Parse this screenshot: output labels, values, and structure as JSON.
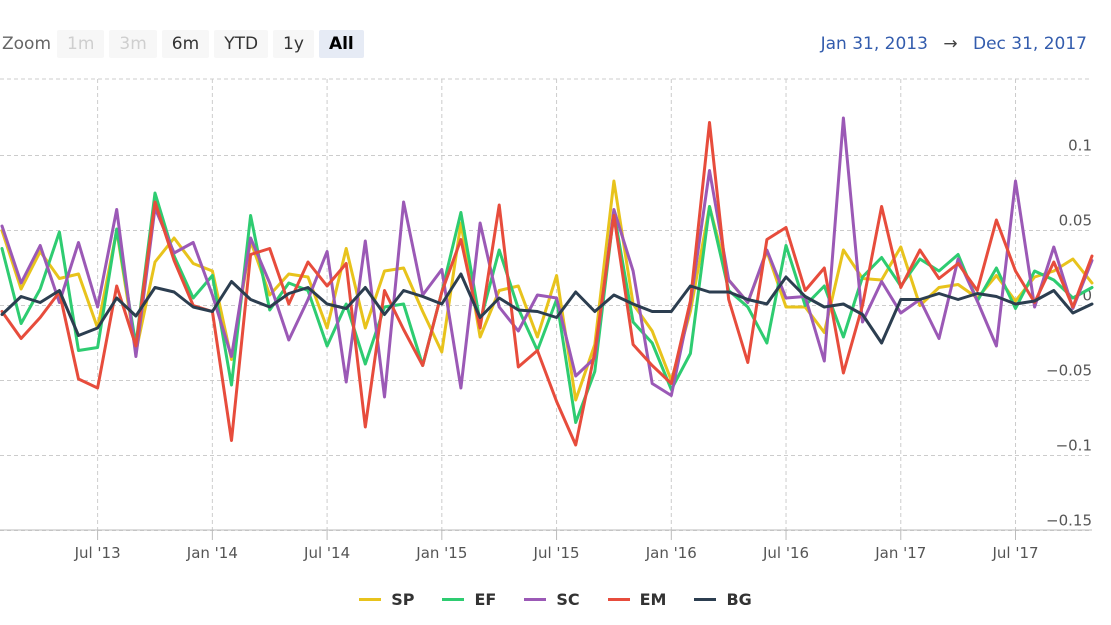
{
  "toolbar": {
    "zoom_label": "Zoom",
    "buttons": [
      "1m",
      "3m",
      "6m",
      "YTD",
      "1y",
      "All"
    ]
  },
  "range": {
    "from": "Jan 31, 2013",
    "arrow": "→",
    "to": "Dec 31, 2017"
  },
  "chart_data": {
    "type": "line",
    "x_start": "2013-01",
    "x_interval": "monthly",
    "x_tick_labels": [
      "Jul '13",
      "Jan '14",
      "Jul '14",
      "Jan '15",
      "Jul '15",
      "Jan '16",
      "Jul '16",
      "Jan '17",
      "Jul '17"
    ],
    "y_tick_labels": [
      "0.1",
      "0.05",
      "0",
      "−0.05",
      "−0.1",
      "−0.15"
    ],
    "y_ticks": [
      0.1,
      0.05,
      0,
      -0.05,
      -0.1,
      -0.15
    ],
    "ylim": [
      -0.15,
      0.1
    ],
    "grid": true,
    "legend_position": "bottom",
    "series": [
      {
        "name": "SP",
        "color": "#e8c31c",
        "values": [
          0.05,
          0.011,
          0.036,
          0.018,
          0.021,
          -0.015,
          0.05,
          -0.031,
          0.029,
          0.045,
          0.028,
          0.023,
          -0.036,
          0.043,
          0.007,
          0.021,
          0.019,
          -0.015,
          0.038,
          -0.015,
          0.023,
          0.025,
          -0.004,
          -0.031,
          0.055,
          -0.021,
          0.01,
          0.013,
          -0.021,
          0.02,
          -0.063,
          -0.026,
          0.083,
          0.001,
          -0.017,
          -0.05,
          -0.004,
          0.066,
          0.017,
          0.002,
          0.036,
          -0.001,
          -0.001,
          -0.018,
          0.037,
          0.018,
          0.017,
          0.039,
          0.0,
          0.012,
          0.014,
          0.005,
          0.02,
          0.003,
          0.019,
          0.023,
          0.031,
          0.015
        ]
      },
      {
        "name": "EF",
        "color": "#2ecc71",
        "values": [
          0.038,
          -0.012,
          0.011,
          0.049,
          -0.03,
          -0.028,
          0.051,
          -0.026,
          0.075,
          0.033,
          0.005,
          0.02,
          -0.053,
          0.06,
          -0.003,
          0.015,
          0.01,
          -0.027,
          0.001,
          -0.039,
          -0.001,
          0.001,
          -0.04,
          0.009,
          0.062,
          -0.011,
          0.037,
          -0.002,
          -0.03,
          0.004,
          -0.078,
          -0.044,
          0.062,
          -0.011,
          -0.025,
          -0.056,
          -0.032,
          0.066,
          0.01,
          -0.001,
          -0.025,
          0.04,
          0.0,
          0.013,
          -0.021,
          0.019,
          0.032,
          0.013,
          0.031,
          0.023,
          0.034,
          0.003,
          0.025,
          -0.002,
          0.023,
          0.017,
          0.005,
          0.012
        ]
      },
      {
        "name": "SC",
        "color": "#9b59b6",
        "values": [
          0.053,
          0.015,
          0.04,
          0.002,
          0.042,
          -0.001,
          0.064,
          -0.034,
          0.065,
          0.035,
          0.042,
          0.007,
          -0.034,
          0.045,
          0.015,
          -0.023,
          0.004,
          0.036,
          -0.051,
          0.043,
          -0.061,
          0.069,
          0.007,
          0.024,
          -0.055,
          0.055,
          -0.001,
          -0.017,
          0.007,
          0.005,
          -0.047,
          -0.035,
          0.064,
          0.023,
          -0.052,
          -0.06,
          0.001,
          0.09,
          0.017,
          0.002,
          0.037,
          0.005,
          0.006,
          -0.037,
          0.125,
          -0.011,
          0.016,
          -0.005,
          0.004,
          -0.022,
          0.031,
          0.003,
          -0.027,
          0.083,
          -0.001,
          0.039,
          -0.002,
          0.03
        ]
      },
      {
        "name": "EM",
        "color": "#e74c3c",
        "values": [
          -0.004,
          -0.022,
          -0.008,
          0.009,
          -0.049,
          -0.055,
          0.013,
          -0.027,
          0.069,
          0.03,
          0.0,
          -0.004,
          -0.09,
          0.034,
          0.038,
          0.001,
          0.029,
          0.013,
          0.028,
          -0.081,
          0.01,
          -0.016,
          -0.04,
          0.009,
          0.044,
          -0.015,
          0.067,
          -0.041,
          -0.03,
          -0.064,
          -0.093,
          -0.031,
          0.06,
          -0.026,
          -0.04,
          -0.052,
          0.003,
          0.122,
          0.004,
          -0.038,
          0.044,
          0.052,
          0.01,
          0.025,
          -0.045,
          0.0,
          0.066,
          0.012,
          0.037,
          0.018,
          0.028,
          0.01,
          0.057,
          0.023,
          0.002,
          0.029,
          -0.001,
          0.033
        ]
      },
      {
        "name": "BG",
        "color": "#2c3e50",
        "values": [
          -0.006,
          0.006,
          0.002,
          0.01,
          -0.02,
          -0.015,
          0.005,
          -0.007,
          0.012,
          0.009,
          -0.001,
          -0.004,
          0.016,
          0.004,
          -0.001,
          0.008,
          0.012,
          0.001,
          -0.002,
          0.012,
          -0.006,
          0.01,
          0.006,
          0.001,
          0.021,
          -0.008,
          0.005,
          -0.003,
          -0.004,
          -0.008,
          0.009,
          -0.004,
          0.007,
          0.001,
          -0.004,
          -0.004,
          0.013,
          0.009,
          0.009,
          0.004,
          0.001,
          0.019,
          0.006,
          -0.001,
          0.001,
          -0.006,
          -0.025,
          0.004,
          0.004,
          0.008,
          0.004,
          0.008,
          0.006,
          0.001,
          0.003,
          0.01,
          -0.005,
          0.001
        ]
      }
    ]
  }
}
